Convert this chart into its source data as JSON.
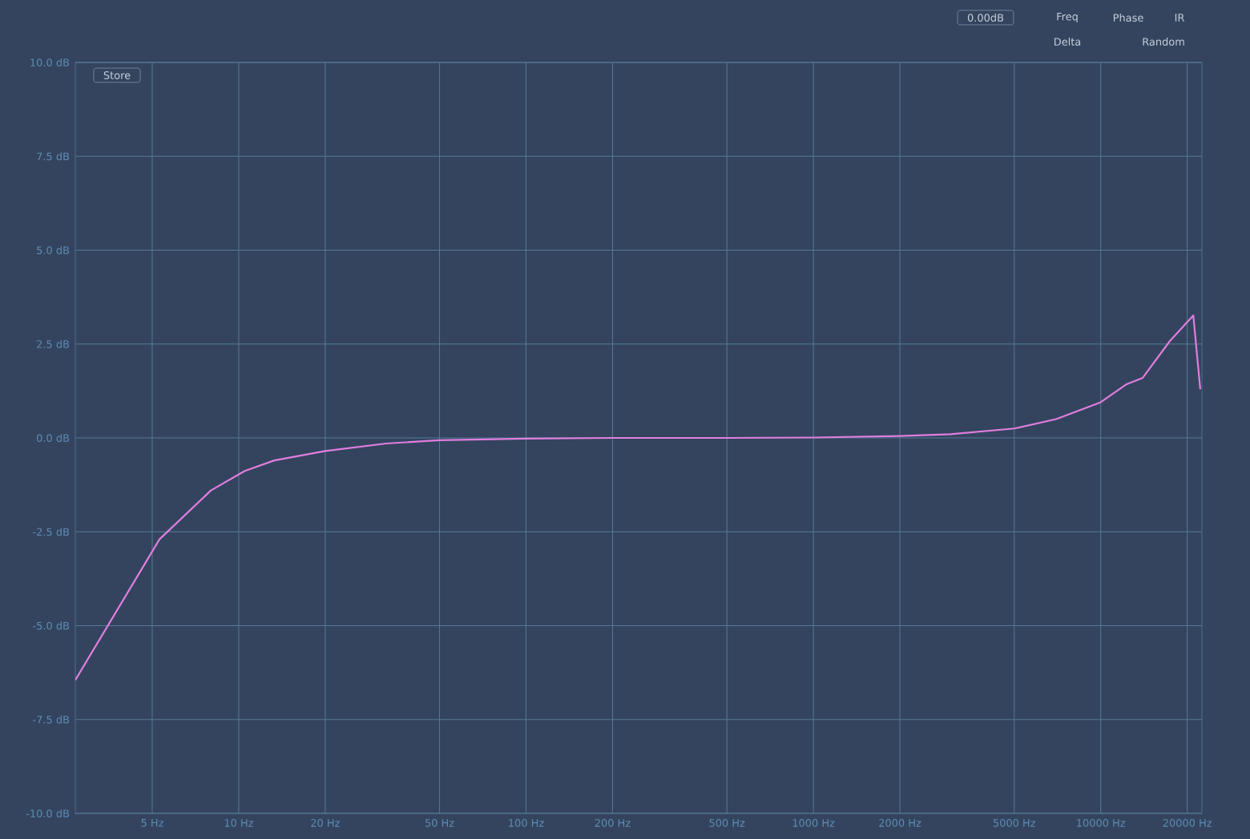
{
  "chart_data": {
    "type": "line",
    "x": [
      2.7,
      5.3,
      8.0,
      10.5,
      13.3,
      20,
      32.6,
      50,
      100,
      200,
      500,
      1000,
      2000,
      3000,
      5000,
      7000,
      10000,
      12300,
      14000,
      17400,
      21000,
      22200
    ],
    "series": [
      {
        "color": "#e07ee0",
        "values": [
          -6.45,
          -2.7,
          -1.4,
          -0.88,
          -0.6,
          -0.35,
          -0.15,
          -0.06,
          -0.02,
          0,
          0,
          0.01,
          0.05,
          0.1,
          0.25,
          0.5,
          0.95,
          1.43,
          1.6,
          2.58,
          3.26,
          1.3
        ]
      }
    ],
    "log": "x",
    "xlim": [
      2.7,
      22500
    ],
    "ylim": [
      -10,
      10
    ],
    "xticks": [
      {
        "value": 5,
        "label": "5 Hz"
      },
      {
        "value": 10,
        "label": "10 Hz"
      },
      {
        "value": 20,
        "label": "20 Hz"
      },
      {
        "value": 50,
        "label": "50 Hz"
      },
      {
        "value": 100,
        "label": "100 Hz"
      },
      {
        "value": 200,
        "label": "200 Hz"
      },
      {
        "value": 500,
        "label": "500 Hz"
      },
      {
        "value": 1000,
        "label": "1000 Hz"
      },
      {
        "value": 2000,
        "label": "2000 Hz"
      },
      {
        "value": 5000,
        "label": "5000 Hz"
      },
      {
        "value": 10000,
        "label": "10000 Hz"
      },
      {
        "value": 20000,
        "label": "20000 Hz"
      }
    ],
    "yticks": [
      {
        "value": -10,
        "label": "-10.0 dB"
      },
      {
        "value": -7.5,
        "label": "-7.5 dB"
      },
      {
        "value": -5,
        "label": "-5.0 dB"
      },
      {
        "value": -2.5,
        "label": "-2.5 dB"
      },
      {
        "value": 0,
        "label": "0.0 dB"
      },
      {
        "value": 2.5,
        "label": "2.5 dB"
      },
      {
        "value": 5,
        "label": "5.0 dB"
      },
      {
        "value": 7.5,
        "label": "7.5 dB"
      },
      {
        "value": 10,
        "label": "10.0 dB"
      }
    ],
    "grid": true,
    "annotations": [
      "Store",
      "0.00dB",
      "Freq",
      "Phase",
      "IR",
      "Delta",
      "Random"
    ]
  }
}
